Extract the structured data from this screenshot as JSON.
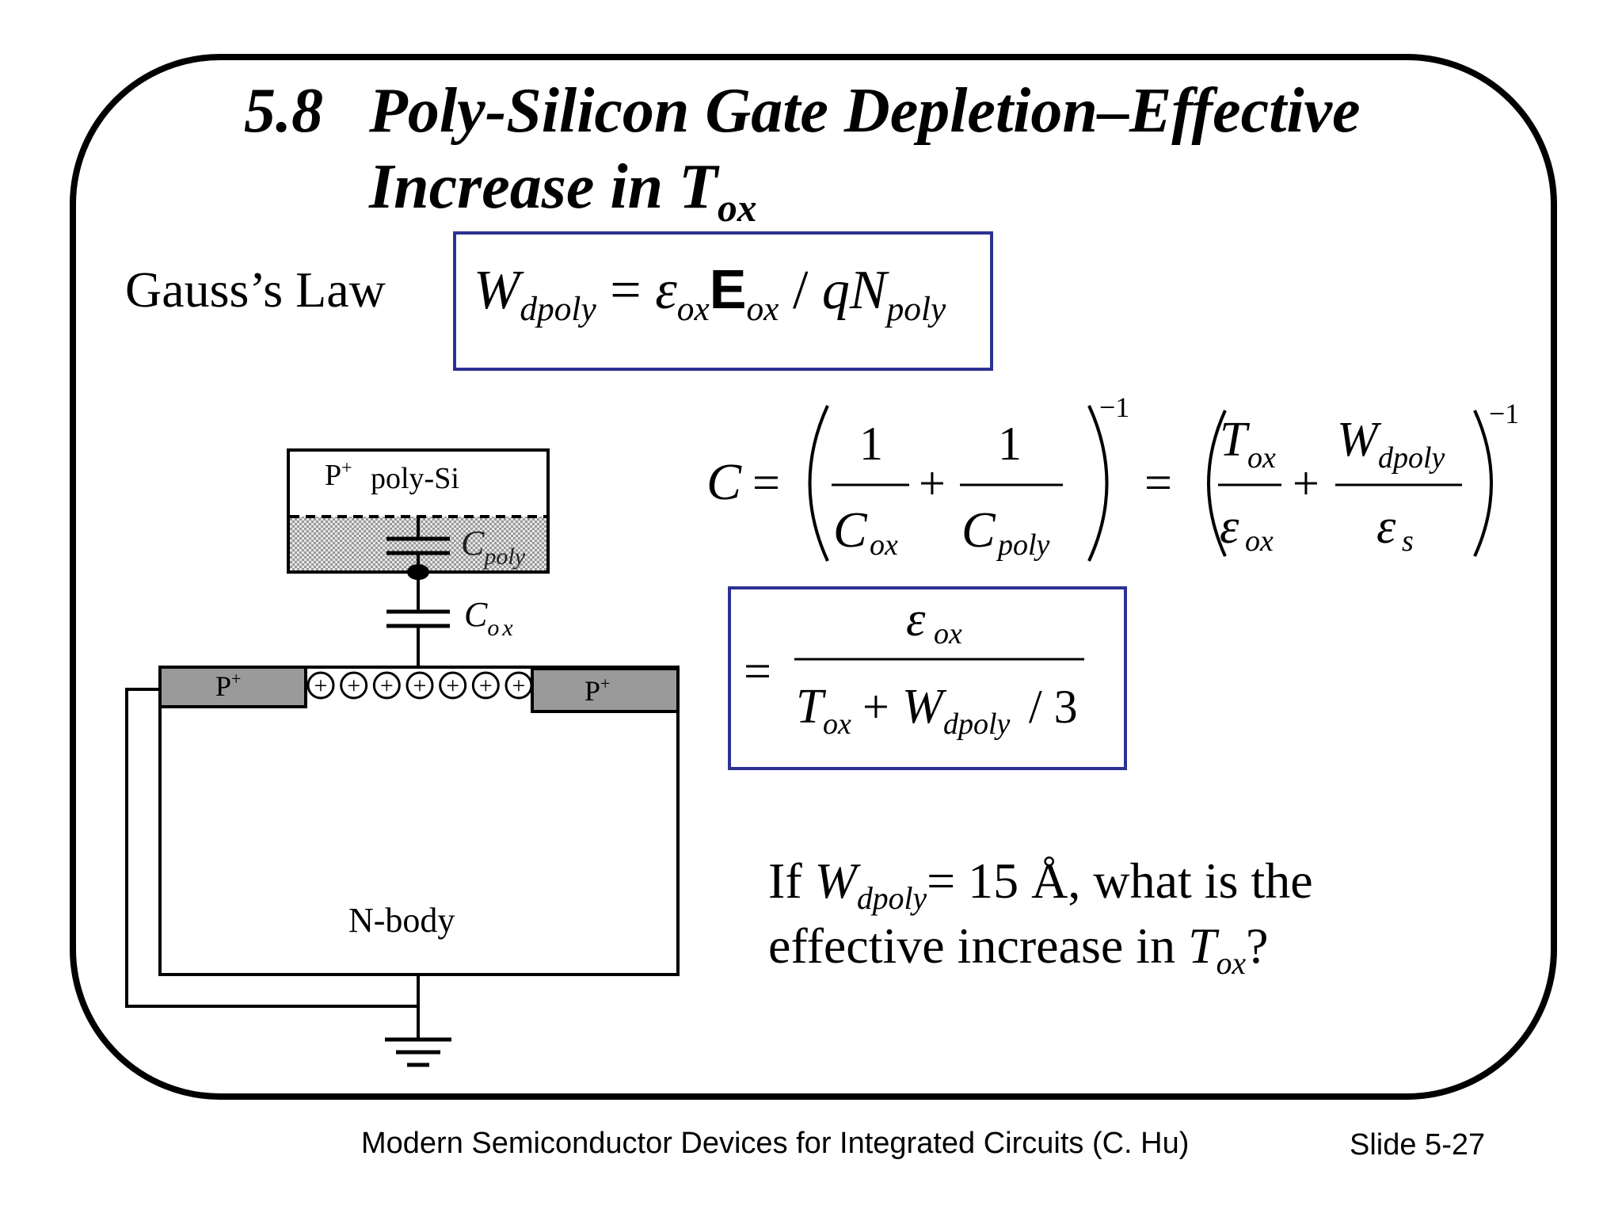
{
  "slide": {
    "title": {
      "number": "5.8",
      "line1": "Poly-Silicon Gate Depletion–Effective",
      "line2_main": "Increase in T",
      "line2_sub": "ox"
    },
    "gauss_label": "Gauss’s Law",
    "gauss_formula": {
      "W": "W",
      "W_sub": "dpoly",
      "eq": "=",
      "eps": "ε",
      "eps_sub": "ox",
      "E": "E",
      "E_sub": "ox",
      "slash": "/",
      "qN": "qN",
      "qN_sub": "poly"
    },
    "capacitance_formula": {
      "C": "C",
      "eq": "=",
      "one": "1",
      "Cox": "C",
      "ox": "ox",
      "plus": "+",
      "Cpoly": "C",
      "poly": "poly",
      "inv": "−1",
      "T": "T",
      "W": "W",
      "dpoly": "dpoly",
      "eps": "ε",
      "s": "s"
    },
    "boxed_result": {
      "eq": "=",
      "num_eps": "ε",
      "num_sub": "ox",
      "T": "T",
      "T_sub": "ox",
      "plus": "+",
      "W": "W",
      "W_sub": "dpoly",
      "div": "/ 3"
    },
    "question": {
      "line1_pre": "If ",
      "W": "W",
      "W_sub": "dpoly",
      "line1_post": "= 15 Å, what is the",
      "line2_pre": "effective increase in ",
      "T": "T",
      "T_sub": "ox",
      "line2_post": "?"
    },
    "footer": {
      "book": "Modern Semiconductor Devices for Integrated Circuits  (C. Hu)",
      "slide": "Slide 5-27"
    }
  },
  "diagram": {
    "gate_label": "P",
    "gate_label_sup": "+",
    "gate_material": "poly-Si",
    "cpoly_label": "C",
    "cpoly_sub": "poly",
    "cox_label": "C",
    "cox_sub": "ox",
    "source_label": "P",
    "source_sup": "+",
    "drain_label": "P",
    "drain_sup": "+",
    "body_label": "N-body",
    "charge_symbol": "+",
    "charge_count": 7
  }
}
